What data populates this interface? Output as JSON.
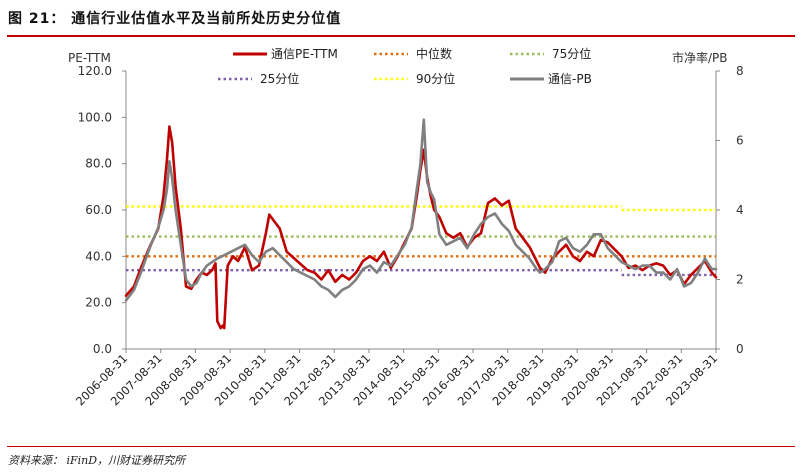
{
  "title": "图 21： 通信行业估值水平及当前所处历史分位值",
  "source": "资料来源： iFinD，川财证券研究所",
  "colors": {
    "pe": "#c00000",
    "pb": "#808080",
    "median": "#e46c0a",
    "p75": "#9bbb59",
    "p25": "#7f60a8",
    "p90": "#ffff00",
    "rule": "#c00000"
  },
  "chart_data": {
    "type": "line",
    "ylabel_left": "PE-TTM",
    "ylabel_right": "市净率/PB",
    "ylim_left": [
      0,
      120
    ],
    "ylim_right": [
      0,
      8
    ],
    "yticks_left": [
      "0.0",
      "20.0",
      "40.0",
      "60.0",
      "80.0",
      "100.0",
      "120.0"
    ],
    "yticks_right": [
      "0",
      "2",
      "4",
      "6",
      "8"
    ],
    "x_tick_labels": [
      "2006-08-31",
      "2007-08-31",
      "2008-08-31",
      "2009-08-31",
      "2010-08-31",
      "2011-08-31",
      "2012-08-31",
      "2013-08-31",
      "2014-08-31",
      "2015-08-31",
      "2016-08-31",
      "2017-08-31",
      "2018-08-31",
      "2019-08-31",
      "2020-08-31",
      "2021-08-31",
      "2022-08-31",
      "2023-08-31"
    ],
    "legend_placement": "top",
    "legend": [
      "通信PE-TTM",
      "中位数",
      "75分位",
      "25分位",
      "90分位",
      "通信-PB"
    ],
    "series": [
      {
        "name": "通信PE-TTM",
        "axis": "left",
        "style": "solid",
        "color_key": "pe",
        "x": [
          2006.67,
          2006.9,
          2007.1,
          2007.35,
          2007.6,
          2007.75,
          2007.85,
          2007.92,
          2008.0,
          2008.1,
          2008.25,
          2008.4,
          2008.55,
          2008.7,
          2008.85,
          2009.0,
          2009.15,
          2009.25,
          2009.3,
          2009.4,
          2009.45,
          2009.5,
          2009.6,
          2009.75,
          2009.9,
          2010.1,
          2010.3,
          2010.5,
          2010.7,
          2010.8,
          2010.95,
          2011.1,
          2011.3,
          2011.6,
          2011.9,
          2012.1,
          2012.3,
          2012.5,
          2012.7,
          2012.9,
          2013.1,
          2013.3,
          2013.5,
          2013.7,
          2013.9,
          2014.1,
          2014.3,
          2014.5,
          2014.7,
          2014.9,
          2015.05,
          2015.15,
          2015.25,
          2015.35,
          2015.45,
          2015.55,
          2015.7,
          2015.9,
          2016.1,
          2016.3,
          2016.5,
          2016.7,
          2016.9,
          2017.1,
          2017.3,
          2017.5,
          2017.7,
          2017.9,
          2018.1,
          2018.3,
          2018.5,
          2018.6,
          2018.75,
          2018.95,
          2019.15,
          2019.35,
          2019.55,
          2019.75,
          2019.95,
          2020.15,
          2020.35,
          2020.55,
          2020.75,
          2020.95,
          2021.15,
          2021.35,
          2021.55,
          2021.75,
          2021.95,
          2022.15,
          2022.35,
          2022.55,
          2022.75,
          2022.95,
          2023.15,
          2023.35,
          2023.55,
          2023.67
        ],
        "values": [
          23,
          27,
          35,
          44,
          52,
          66,
          82,
          96,
          89,
          70,
          52,
          27,
          26,
          30,
          33,
          32,
          34,
          37,
          12,
          9,
          10,
          9,
          36,
          40,
          38,
          44,
          34,
          36,
          50,
          58,
          55,
          52,
          42,
          38,
          34,
          33,
          30,
          34,
          29,
          32,
          30,
          33,
          38,
          40,
          38,
          42,
          35,
          40,
          46,
          52,
          66,
          77,
          86,
          74,
          66,
          60,
          57,
          50,
          48,
          50,
          44,
          48,
          50,
          63,
          65,
          62,
          64,
          52,
          48,
          44,
          38,
          35,
          33,
          39,
          42,
          45,
          40,
          38,
          42,
          40,
          47,
          46,
          43,
          40,
          35,
          36,
          34,
          36,
          37,
          36,
          32,
          34,
          28,
          32,
          35,
          38,
          33,
          31
        ]
      },
      {
        "name": "通信-PB",
        "axis": "right",
        "style": "solid",
        "color_key": "pb",
        "x": [
          2006.67,
          2006.9,
          2007.1,
          2007.35,
          2007.6,
          2007.75,
          2007.85,
          2007.92,
          2008.0,
          2008.1,
          2008.25,
          2008.4,
          2008.55,
          2008.7,
          2008.85,
          2009.0,
          2009.15,
          2009.3,
          2009.5,
          2009.7,
          2009.9,
          2010.1,
          2010.3,
          2010.5,
          2010.7,
          2010.9,
          2011.1,
          2011.3,
          2011.5,
          2011.7,
          2011.9,
          2012.1,
          2012.3,
          2012.5,
          2012.7,
          2012.9,
          2013.1,
          2013.3,
          2013.5,
          2013.7,
          2013.9,
          2014.1,
          2014.3,
          2014.5,
          2014.7,
          2014.9,
          2015.05,
          2015.15,
          2015.25,
          2015.35,
          2015.45,
          2015.55,
          2015.7,
          2015.9,
          2016.1,
          2016.3,
          2016.5,
          2016.7,
          2016.9,
          2017.1,
          2017.3,
          2017.5,
          2017.7,
          2017.9,
          2018.1,
          2018.3,
          2018.5,
          2018.6,
          2018.75,
          2018.95,
          2019.15,
          2019.35,
          2019.55,
          2019.75,
          2019.95,
          2020.15,
          2020.35,
          2020.55,
          2020.75,
          2020.95,
          2021.15,
          2021.35,
          2021.55,
          2021.75,
          2021.95,
          2022.15,
          2022.35,
          2022.55,
          2022.75,
          2022.95,
          2023.15,
          2023.35,
          2023.55,
          2023.67
        ],
        "values": [
          1.4,
          1.7,
          2.2,
          2.9,
          3.5,
          4.0,
          4.6,
          5.4,
          4.9,
          4.0,
          3.0,
          2.0,
          1.8,
          1.9,
          2.2,
          2.4,
          2.5,
          2.6,
          2.7,
          2.8,
          2.9,
          3.0,
          2.7,
          2.5,
          2.8,
          2.9,
          2.7,
          2.5,
          2.3,
          2.2,
          2.1,
          2.0,
          1.8,
          1.7,
          1.5,
          1.7,
          1.8,
          2.0,
          2.3,
          2.4,
          2.2,
          2.5,
          2.4,
          2.7,
          3.0,
          3.5,
          4.6,
          5.3,
          6.6,
          4.8,
          4.5,
          4.3,
          3.3,
          3.0,
          3.1,
          3.2,
          2.9,
          3.3,
          3.6,
          3.8,
          3.9,
          3.6,
          3.4,
          3.0,
          2.8,
          2.6,
          2.3,
          2.2,
          2.3,
          2.5,
          3.1,
          3.2,
          2.9,
          2.8,
          3.0,
          3.3,
          3.3,
          2.9,
          2.7,
          2.5,
          2.4,
          2.3,
          2.4,
          2.4,
          2.2,
          2.2,
          2.0,
          2.3,
          1.8,
          1.9,
          2.2,
          2.6,
          2.3,
          2.3
        ]
      },
      {
        "name": "中位数",
        "axis": "left",
        "style": "dotted",
        "color_key": "median",
        "x": [
          2006.67,
          2023.67
        ],
        "values": [
          40,
          40
        ]
      },
      {
        "name": "75分位",
        "axis": "left",
        "style": "dotted",
        "color_key": "p75",
        "x": [
          2006.67,
          2023.67
        ],
        "values": [
          48.5,
          48.5
        ]
      },
      {
        "name": "25分位",
        "axis": "left",
        "style": "dotted",
        "color_key": "p25",
        "segments": [
          {
            "x": [
              2006.67,
              2020.95
            ],
            "values": [
              34,
              34
            ]
          },
          {
            "x": [
              2020.95,
              2023.67
            ],
            "values": [
              32,
              32
            ]
          }
        ]
      },
      {
        "name": "90分位",
        "axis": "left",
        "style": "dotted",
        "color_key": "p90",
        "segments": [
          {
            "x": [
              2006.67,
              2020.95
            ],
            "values": [
              61.5,
              61.5
            ]
          },
          {
            "x": [
              2020.95,
              2023.67
            ],
            "values": [
              60,
              60
            ]
          }
        ]
      }
    ]
  }
}
